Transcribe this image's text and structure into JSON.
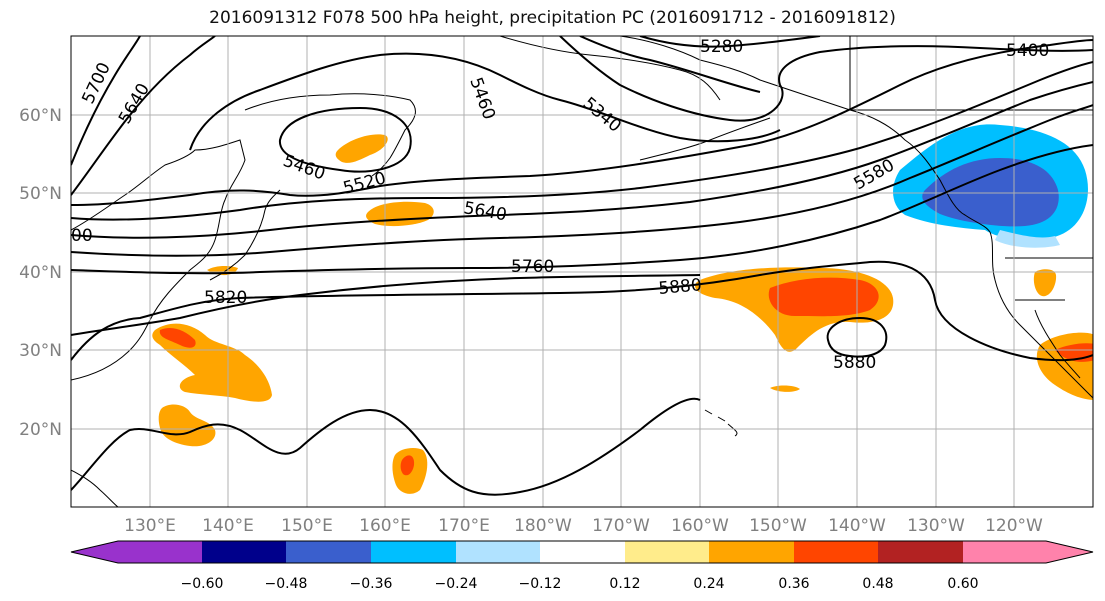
{
  "title": "2016091312 F078 500 hPa height, precipitation PC (2016091712 - 2016091812)",
  "axes": {
    "lat_labels": [
      "60°N",
      "50°N",
      "40°N",
      "30°N",
      "20°N"
    ],
    "lon_labels": [
      "130°E",
      "140°E",
      "150°E",
      "160°E",
      "170°E",
      "180°W",
      "170°W",
      "160°W",
      "150°W",
      "140°W",
      "130°W",
      "120°W"
    ]
  },
  "contour_labels": [
    "5700",
    "5640",
    "5460",
    "5280",
    "5340",
    "5400",
    "5460",
    "5520",
    "5580",
    "5640",
    "5760",
    "5820",
    "5880",
    "5880",
    "00"
  ],
  "colorbar": {
    "ticks": [
      "−0.60",
      "−0.48",
      "−0.36",
      "−0.24",
      "−0.12",
      "0.12",
      "0.24",
      "0.36",
      "0.48",
      "0.60"
    ],
    "colors": [
      "#9932cc",
      "#00008b",
      "#3a5fcd",
      "#00bfff",
      "#b0e2ff",
      "#ffffff",
      "#ffec8b",
      "#ffa500",
      "#ff4500",
      "#b22222",
      "#ff82ab"
    ]
  },
  "colors": {
    "contour": "#000000",
    "coast": "#000000",
    "grid": "#b0b0b0",
    "axis_label": "#808080"
  }
}
